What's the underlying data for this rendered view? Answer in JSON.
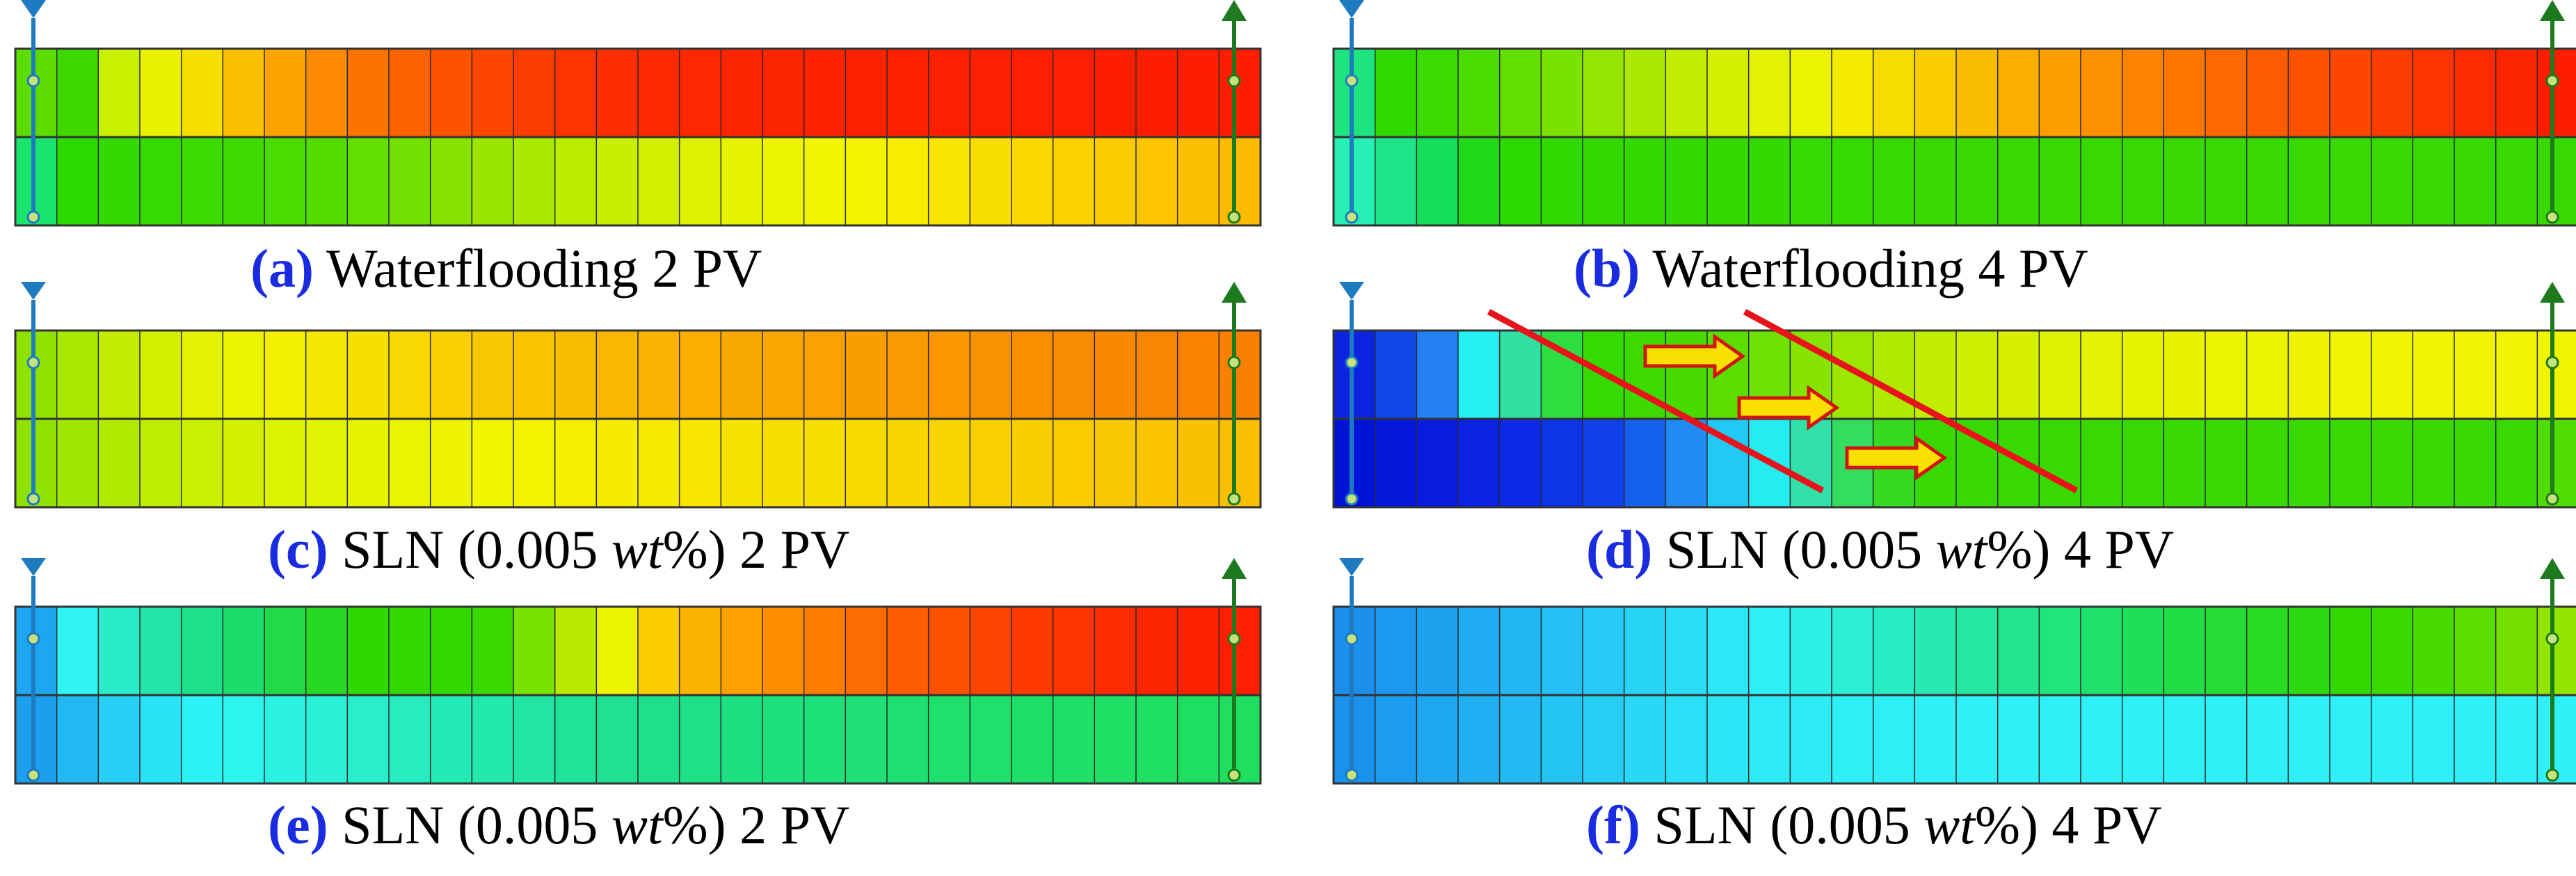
{
  "panels": [
    {
      "id": "a",
      "label": "(a)",
      "caption_before": "Waterflooding 2 PV",
      "caption_italic": "",
      "caption_after": "",
      "top_row": [
        "#5ddc00",
        "#3ed700",
        "#caf000",
        "#eaf200",
        "#f6de00",
        "#fbc000",
        "#fca300",
        "#fd8a00",
        "#fc7400",
        "#fc6200",
        "#fd5200",
        "#fd4600",
        "#fd3c00",
        "#fd3400",
        "#fd2e00",
        "#fd2a00",
        "#fd2700",
        "#fd2500",
        "#fd2400",
        "#fd2300",
        "#fd2200",
        "#fd2100",
        "#fd2000",
        "#fd2000",
        "#fd1f00",
        "#fd1f00",
        "#fd1e00",
        "#fd1e00",
        "#fd1e00",
        "#fd1e00"
      ],
      "bottom_row": [
        "#18e46e",
        "#2bd900",
        "#33d900",
        "#36da00",
        "#3bda00",
        "#41da00",
        "#4bdb00",
        "#55dc00",
        "#62de00",
        "#72e000",
        "#86e400",
        "#9ae600",
        "#abe900",
        "#bbec00",
        "#c8ef00",
        "#d3f000",
        "#ddf200",
        "#e5f300",
        "#ecf400",
        "#f2f500",
        "#f5f200",
        "#f7ed00",
        "#f8e600",
        "#f9df00",
        "#fad800",
        "#fbd100",
        "#fbcb00",
        "#fcc500",
        "#fcc000",
        "#fcbb00"
      ]
    },
    {
      "id": "b",
      "label": "(b)",
      "caption_before": "Waterflooding 4 PV",
      "caption_italic": "",
      "caption_after": "",
      "top_row": [
        "#1de47e",
        "#30da00",
        "#3bdb00",
        "#4cdc00",
        "#62de00",
        "#7ae200",
        "#94e600",
        "#ace900",
        "#c2ed00",
        "#d4f000",
        "#e2f200",
        "#ecf300",
        "#f3ea00",
        "#f6dc00",
        "#f9cd00",
        "#fbbd00",
        "#fcae00",
        "#fd9f00",
        "#fd9100",
        "#fd8300",
        "#fd7600",
        "#fd6900",
        "#fd5d00",
        "#fd5100",
        "#fd4600",
        "#fd3c00",
        "#fd3300",
        "#fd2b00",
        "#fd2400",
        "#fd1e00"
      ],
      "bottom_row": [
        "#27f0b4",
        "#1de488",
        "#12de5a",
        "#20da1a",
        "#2cd900",
        "#30d900",
        "#32d900",
        "#33d900",
        "#34d900",
        "#35d900",
        "#35d900",
        "#36d900",
        "#36d900",
        "#36d900",
        "#37d900",
        "#37d900",
        "#37d900",
        "#37d900",
        "#37d900",
        "#37d900",
        "#38d900",
        "#38d900",
        "#38d900",
        "#38d900",
        "#38d900",
        "#38d900",
        "#38d900",
        "#38d900",
        "#38d900",
        "#38d900"
      ]
    },
    {
      "id": "c",
      "label": "(c)",
      "caption_before": "SLN (0.005 ",
      "caption_italic": "wt",
      "caption_after": "%) 2 PV",
      "top_row": [
        "#8fe200",
        "#a9e900",
        "#c2ed00",
        "#d4f000",
        "#e2f200",
        "#ecf300",
        "#f2f000",
        "#f5e800",
        "#f6e000",
        "#f7d800",
        "#f8d000",
        "#f8c900",
        "#f9c300",
        "#f9bd00",
        "#f9b800",
        "#f9b300",
        "#f9ae00",
        "#f9aa00",
        "#f9a600",
        "#f9a200",
        "#f99e00",
        "#f99a00",
        "#f99600",
        "#f99200",
        "#f98f00",
        "#f98c00",
        "#f98900",
        "#f98600",
        "#f98300",
        "#f98000"
      ],
      "bottom_row": [
        "#8fe200",
        "#9fe600",
        "#b1ea00",
        "#bfed00",
        "#caef00",
        "#d3f000",
        "#dbf200",
        "#e1f300",
        "#e6f300",
        "#eaf400",
        "#eef400",
        "#f1f500",
        "#f3f300",
        "#f4ef00",
        "#f5ec00",
        "#f6e900",
        "#f6e600",
        "#f7e300",
        "#f7e000",
        "#f8dd00",
        "#f8da00",
        "#f8d700",
        "#f9d400",
        "#f9d100",
        "#f9ce00",
        "#f9cb00",
        "#f9c800",
        "#f9c500",
        "#f9c200",
        "#f9bf00"
      ]
    },
    {
      "id": "d",
      "label": "(d)",
      "caption_before": "SLN (0.005 ",
      "caption_italic": "wt",
      "caption_after": "%) 4 PV",
      "top_row": [
        "#0b24e0",
        "#1248e8",
        "#2280f2",
        "#22f0f2",
        "#30e0a0",
        "#2edd40",
        "#36d900",
        "#3cda00",
        "#48db00",
        "#5ade00",
        "#6ee100",
        "#86e400",
        "#9ce700",
        "#b0ea00",
        "#c0ed00",
        "#cdef00",
        "#d6f000",
        "#ddf200",
        "#e2f200",
        "#e6f300",
        "#e9f300",
        "#ebf300",
        "#edf400",
        "#eef400",
        "#eff400",
        "#f0f400",
        "#f0f400",
        "#f1f400",
        "#f1f400",
        "#f1f400"
      ],
      "bottom_row": [
        "#0014d8",
        "#0618dc",
        "#081ce0",
        "#0a22e4",
        "#0c2ae6",
        "#0e34e8",
        "#1040ea",
        "#1660ee",
        "#1e8cf4",
        "#22c8f6",
        "#24ecf0",
        "#30e0a8",
        "#34dc60",
        "#36da20",
        "#38d900",
        "#38d900",
        "#38d900",
        "#38d900",
        "#38d900",
        "#38d900",
        "#38d900",
        "#38d900",
        "#38d900",
        "#38d900",
        "#38d900",
        "#38d900",
        "#38d900",
        "#38d900",
        "#38d900",
        "#50dc00"
      ]
    },
    {
      "id": "e",
      "label": "(e)",
      "caption_before": "SLN (0.005 ",
      "caption_italic": "wt",
      "caption_after": "%) 2 PV",
      "top_row": [
        "#1ea6f0",
        "#30f4f2",
        "#28ecc8",
        "#22e6a8",
        "#1ee08a",
        "#1cdc6c",
        "#20da48",
        "#28d924",
        "#2ed900",
        "#32d900",
        "#34d900",
        "#3ad900",
        "#7ae200",
        "#b8eb00",
        "#ecf300",
        "#f9cd00",
        "#fbb500",
        "#fca100",
        "#fd8e00",
        "#fd7d00",
        "#fd6c00",
        "#fd5d00",
        "#fd5000",
        "#fd4500",
        "#fd3b00",
        "#fd3300",
        "#fd2c00",
        "#fd2600",
        "#fd2200",
        "#fd1f00"
      ],
      "bottom_row": [
        "#1ca0ee",
        "#22b8f2",
        "#26d0f4",
        "#28e4f6",
        "#2cf2f6",
        "#2ef4f0",
        "#2cf2e4",
        "#2af0d8",
        "#28eecc",
        "#26ecc0",
        "#24eab6",
        "#22e8ac",
        "#20e6a2",
        "#1ee49a",
        "#1ee292",
        "#1ee08c",
        "#1ee086",
        "#1ee080",
        "#1ee07c",
        "#1ee078",
        "#1ee074",
        "#1ee070",
        "#1ee06c",
        "#1ee06a",
        "#1ee068",
        "#1ee066",
        "#1ee064",
        "#1ee062",
        "#1ee060",
        "#1ee05e"
      ]
    },
    {
      "id": "f",
      "label": "(f)",
      "caption_before": "SLN (0.005 ",
      "caption_italic": "wt",
      "caption_after": "%) 4 PV",
      "top_row": [
        "#1a90ec",
        "#1c98ee",
        "#1ea2f0",
        "#20acf2",
        "#22b6f2",
        "#24c0f4",
        "#26caf4",
        "#28d4f6",
        "#2adef6",
        "#2ce8f6",
        "#2ef0f4",
        "#2cf0e6",
        "#2aeed6",
        "#28ecc4",
        "#26eab2",
        "#24e8a0",
        "#22e68e",
        "#20e47c",
        "#1ee26a",
        "#1ee058",
        "#20de46",
        "#24dc34",
        "#28da22",
        "#2cd910",
        "#32d900",
        "#3ada00",
        "#48db00",
        "#5cdd00",
        "#74e000",
        "#92e500"
      ],
      "bottom_row": [
        "#1a92ec",
        "#1c9cee",
        "#1ea6f0",
        "#20b0f2",
        "#22baf2",
        "#24c4f4",
        "#26cef4",
        "#28d8f6",
        "#2ae0f6",
        "#2ce6f6",
        "#2eeaf6",
        "#2eecf6",
        "#2eeef6",
        "#2eeef6",
        "#2ef0f6",
        "#2ef0f6",
        "#2ef0f6",
        "#2ef0f6",
        "#2ef0f6",
        "#2ef0f6",
        "#2ef0f6",
        "#2ef0f6",
        "#2ef0f6",
        "#2ef0f6",
        "#2ef0f6",
        "#2ef0f6",
        "#2ef0f6",
        "#2ef0f6",
        "#2ef0f6",
        "#2ef0f6"
      ]
    }
  ],
  "colors": {
    "injector": "#1e7bc0",
    "producer": "#1e7a1e",
    "well_node": "#c6e27a",
    "front_line": "#e8141c",
    "arrow_fill": "#f9e000",
    "arrow_stroke": "#d21414",
    "label": "#1a2ce0"
  }
}
